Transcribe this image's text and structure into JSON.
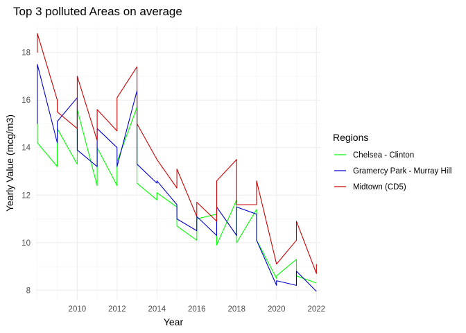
{
  "chart_data": {
    "type": "line",
    "title": "Top 3 polluted Areas on average",
    "xlabel": "Year",
    "ylabel": "Yearly Value (mcg/m3)",
    "xlim": [
      2007.9,
      2022.2
    ],
    "ylim": [
      7.6,
      19.1
    ],
    "x_ticks": [
      2010,
      2012,
      2014,
      2016,
      2018,
      2020,
      2022
    ],
    "y_ticks": [
      8,
      10,
      12,
      14,
      16,
      18
    ],
    "grid": true,
    "legend": {
      "title": "Regions",
      "position": "right"
    },
    "series": [
      {
        "name": "Chelsea - Clinton",
        "color": "#00ff00",
        "points": [
          [
            2008,
            15.0
          ],
          [
            2008,
            14.2
          ],
          [
            2009,
            13.2
          ],
          [
            2009,
            14.8
          ],
          [
            2010,
            13.3
          ],
          [
            2010,
            15.6
          ],
          [
            2011,
            12.4
          ],
          [
            2011,
            14.0
          ],
          [
            2012,
            12.4
          ],
          [
            2012,
            13.4
          ],
          [
            2013,
            15.7
          ],
          [
            2013,
            12.5
          ],
          [
            2014,
            11.8
          ],
          [
            2014,
            12.1
          ],
          [
            2015,
            11.5
          ],
          [
            2015,
            10.7
          ],
          [
            2016,
            10.1
          ],
          [
            2016,
            11.0
          ],
          [
            2017,
            11.2
          ],
          [
            2017,
            9.9
          ],
          [
            2018,
            11.8
          ],
          [
            2018,
            10.0
          ],
          [
            2019,
            11.4
          ],
          [
            2019,
            10.1
          ],
          [
            2020,
            8.5
          ],
          [
            2020,
            8.6
          ],
          [
            2021,
            9.3
          ],
          [
            2021,
            8.6
          ],
          [
            2022,
            8.3
          ]
        ]
      },
      {
        "name": "Gramercy Park - Murray Hill",
        "color": "#0000cc",
        "points": [
          [
            2008,
            15.0
          ],
          [
            2008,
            17.5
          ],
          [
            2009,
            14.2
          ],
          [
            2009,
            15.1
          ],
          [
            2010,
            16.1
          ],
          [
            2010,
            13.9
          ],
          [
            2011,
            13.2
          ],
          [
            2011,
            14.8
          ],
          [
            2012,
            14.0
          ],
          [
            2012,
            13.2
          ],
          [
            2013,
            16.4
          ],
          [
            2013,
            13.3
          ],
          [
            2014,
            12.5
          ],
          [
            2014,
            12.6
          ],
          [
            2015,
            11.6
          ],
          [
            2015,
            11.0
          ],
          [
            2016,
            10.5
          ],
          [
            2016,
            11.1
          ],
          [
            2017,
            10.3
          ],
          [
            2017,
            11.5
          ],
          [
            2018,
            10.3
          ],
          [
            2018,
            11.5
          ],
          [
            2019,
            11.2
          ],
          [
            2019,
            10.1
          ],
          [
            2020,
            8.2
          ],
          [
            2020,
            8.4
          ],
          [
            2021,
            8.2
          ],
          [
            2021,
            8.8
          ],
          [
            2022,
            7.95
          ]
        ]
      },
      {
        "name": "Midtown (CD5)",
        "color": "#cc0000",
        "points": [
          [
            2008,
            18.0
          ],
          [
            2008,
            18.8
          ],
          [
            2009,
            16.0
          ],
          [
            2009,
            15.5
          ],
          [
            2010,
            14.8
          ],
          [
            2010,
            17.0
          ],
          [
            2011,
            14.3
          ],
          [
            2011,
            15.6
          ],
          [
            2012,
            14.7
          ],
          [
            2012,
            16.1
          ],
          [
            2013,
            17.4
          ],
          [
            2013,
            15.0
          ],
          [
            2014,
            13.5
          ],
          [
            2015,
            12.3
          ],
          [
            2015,
            13.1
          ],
          [
            2016,
            11.1
          ],
          [
            2016,
            11.7
          ],
          [
            2017,
            10.9
          ],
          [
            2017,
            12.6
          ],
          [
            2018,
            13.5
          ],
          [
            2018,
            11.6
          ],
          [
            2019,
            11.6
          ],
          [
            2019,
            12.6
          ],
          [
            2020,
            9.1
          ],
          [
            2021,
            10.1
          ],
          [
            2021,
            10.9
          ],
          [
            2022,
            8.7
          ],
          [
            2022,
            9.1
          ]
        ]
      }
    ]
  }
}
